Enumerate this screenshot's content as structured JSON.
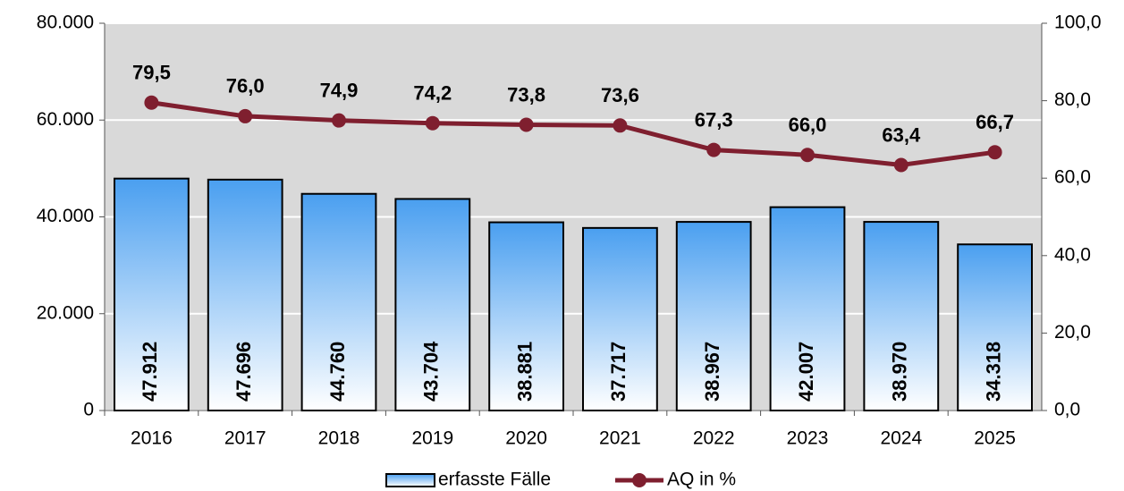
{
  "chart_data": {
    "type": "bar",
    "categories": [
      "2016",
      "2017",
      "2018",
      "2019",
      "2020",
      "2021",
      "2022",
      "2023",
      "2024",
      "2025"
    ],
    "series": [
      {
        "name": "erfasste Fälle",
        "type": "bar",
        "color": "#4a9ff0",
        "values": [
          47912,
          47696,
          44760,
          43704,
          38881,
          37717,
          38967,
          42007,
          38970,
          34318
        ],
        "value_labels": [
          "47.912",
          "47.696",
          "44.760",
          "43.704",
          "38.881",
          "37.717",
          "38.967",
          "42.007",
          "38.970",
          "34.318"
        ]
      },
      {
        "name": "AQ in %",
        "type": "line",
        "axis": "y2",
        "color": "#7f1f2f",
        "values": [
          79.5,
          76.0,
          74.9,
          74.2,
          73.8,
          73.6,
          67.3,
          66.0,
          63.4,
          66.7
        ],
        "value_labels": [
          "79,5",
          "76,0",
          "74,9",
          "74,2",
          "73,8",
          "73,6",
          "67,3",
          "66,0",
          "63,4",
          "66,7"
        ]
      }
    ],
    "ylim": [
      0,
      80000
    ],
    "yticks": [
      0,
      {
        "value": 20000,
        "label": "20.000"
      },
      {
        "value": 40000,
        "label": "40.000"
      },
      {
        "value": 60000,
        "label": "60.000"
      },
      {
        "value": 80000,
        "label": "80.000"
      }
    ],
    "y2lim": [
      0,
      100
    ],
    "y2ticks": [
      {
        "value": 0,
        "label": "0,0"
      },
      {
        "value": 20,
        "label": "20,0"
      },
      {
        "value": 40,
        "label": "40,0"
      },
      {
        "value": 60,
        "label": "60,0"
      },
      {
        "value": 80,
        "label": "80,0"
      },
      {
        "value": 100,
        "label": "100,0"
      }
    ],
    "grid": true,
    "legend": "bottom",
    "plot_background": "#d9d9d9"
  }
}
